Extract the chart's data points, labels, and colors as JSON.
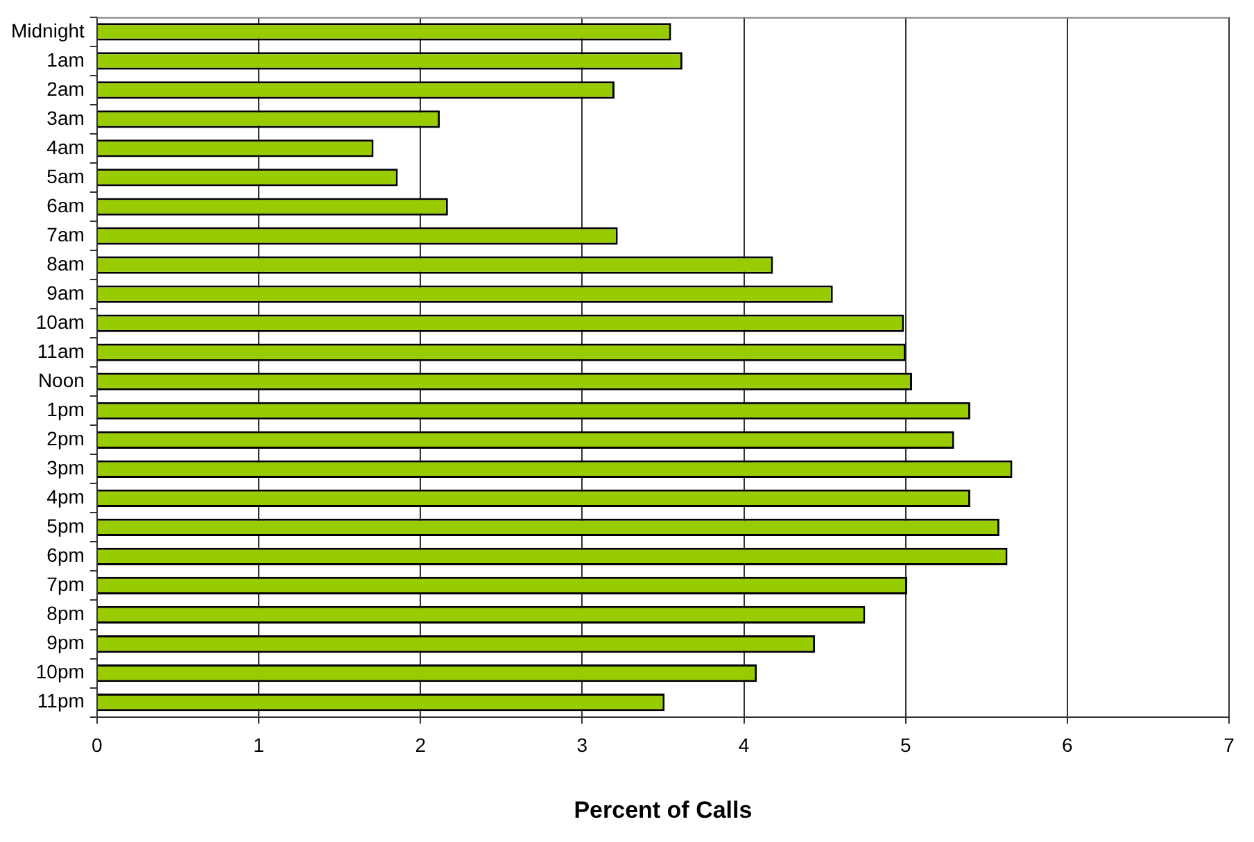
{
  "chart_data": {
    "type": "bar",
    "orientation": "horizontal",
    "xlabel": "Percent of Calls",
    "categories": [
      "Midnight",
      "1am",
      "2am",
      "3am",
      "4am",
      "5am",
      "6am",
      "7am",
      "8am",
      "9am",
      "10am",
      "11am",
      "Noon",
      "1pm",
      "2pm",
      "3pm",
      "4pm",
      "5pm",
      "6pm",
      "7pm",
      "8pm",
      "9pm",
      "10pm",
      "11pm"
    ],
    "values": [
      3.55,
      3.62,
      3.2,
      2.12,
      1.71,
      1.86,
      2.17,
      3.22,
      4.18,
      4.55,
      4.99,
      5.0,
      5.04,
      5.4,
      5.3,
      5.66,
      5.4,
      5.58,
      5.63,
      5.01,
      4.75,
      4.44,
      4.08,
      3.51
    ],
    "color": "#99cc00",
    "xlim": [
      0,
      7
    ],
    "xticks": [
      0,
      1,
      2,
      3,
      4,
      5,
      6,
      7
    ],
    "grid": "x",
    "legend": false
  }
}
